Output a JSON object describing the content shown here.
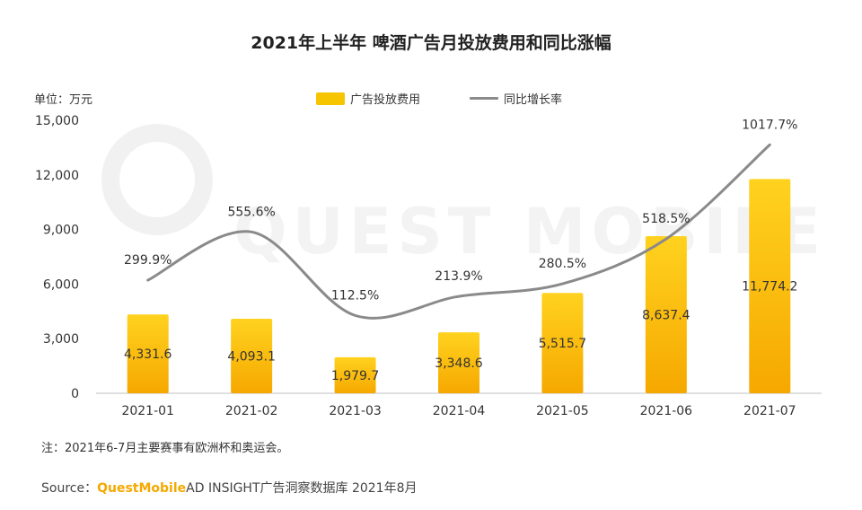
{
  "title": "2021年上半年 啤酒广告月投放费用和同比涨幅",
  "unit_label": "单位：万元",
  "legend": {
    "bar": "广告投放费用",
    "line": "同比增长率"
  },
  "note": "注：2021年6-7月主要赛事有欧洲杯和奥运会。",
  "source": {
    "prefix": "Source：",
    "brand": "QuestMobile",
    "rest": " AD INSIGHT广告洞察数据库 2021年8月"
  },
  "watermark": "QUEST MOBILE",
  "colors": {
    "bar_top": "#FFD21F",
    "bar_bottom": "#F6A800",
    "line": "#8A8A8A",
    "axis": "#BFBFBF",
    "brand": "#F3A900"
  },
  "chart_data": {
    "type": "bar+line",
    "categories": [
      "2021-01",
      "2021-02",
      "2021-03",
      "2021-04",
      "2021-05",
      "2021-06",
      "2021-07"
    ],
    "series": [
      {
        "name": "广告投放费用",
        "type": "bar",
        "values": [
          4331.6,
          4093.1,
          1979.7,
          3348.6,
          5515.7,
          8637.4,
          11774.2
        ],
        "labels": [
          "4,331.6",
          "4,093.1",
          "1,979.7",
          "3,348.6",
          "5,515.7",
          "8,637.4",
          "11,774.2"
        ]
      },
      {
        "name": "同比增长率",
        "type": "line",
        "values": [
          299.9,
          555.6,
          112.5,
          213.9,
          280.5,
          518.5,
          1017.7
        ],
        "labels": [
          "299.9%",
          "555.6%",
          "112.5%",
          "213.9%",
          "280.5%",
          "518.5%",
          "1017.7%"
        ]
      }
    ],
    "y_axis": {
      "min": 0,
      "max": 15000,
      "ticks": [
        0,
        3000,
        6000,
        9000,
        12000,
        15000
      ],
      "tick_labels": [
        "0",
        "3,000",
        "6,000",
        "9,000",
        "12,000",
        "15,000"
      ]
    },
    "grid": false,
    "legend_position": "top-center"
  }
}
